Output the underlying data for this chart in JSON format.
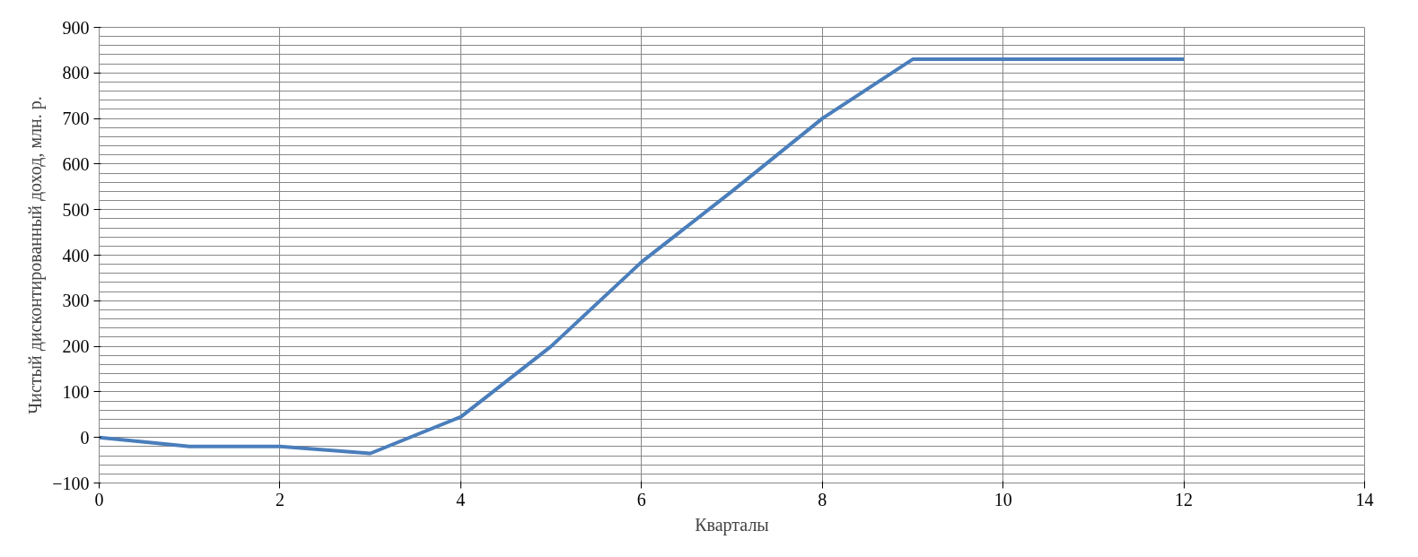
{
  "chart_data": {
    "type": "line",
    "xlabel": "Кварталы",
    "ylabel": "Чистый дисконтированный доход, млн. р.",
    "x": [
      0,
      1,
      2,
      3,
      4,
      5,
      6,
      7,
      8,
      9,
      10,
      11,
      12
    ],
    "series": [
      {
        "color": "#4a7ebb",
        "values": [
          0,
          -20,
          -20,
          -35,
          45,
          200,
          385,
          540,
          700,
          830,
          830,
          830,
          830
        ]
      }
    ],
    "xlim": [
      0,
      14
    ],
    "xticks": [
      0,
      2,
      4,
      6,
      8,
      10,
      12,
      14
    ],
    "ylim": [
      -100,
      900
    ],
    "yticks": [
      -100,
      0,
      100,
      200,
      300,
      400,
      500,
      600,
      700,
      800,
      900
    ],
    "grid": true,
    "marker": "none",
    "line_style": "solid"
  }
}
